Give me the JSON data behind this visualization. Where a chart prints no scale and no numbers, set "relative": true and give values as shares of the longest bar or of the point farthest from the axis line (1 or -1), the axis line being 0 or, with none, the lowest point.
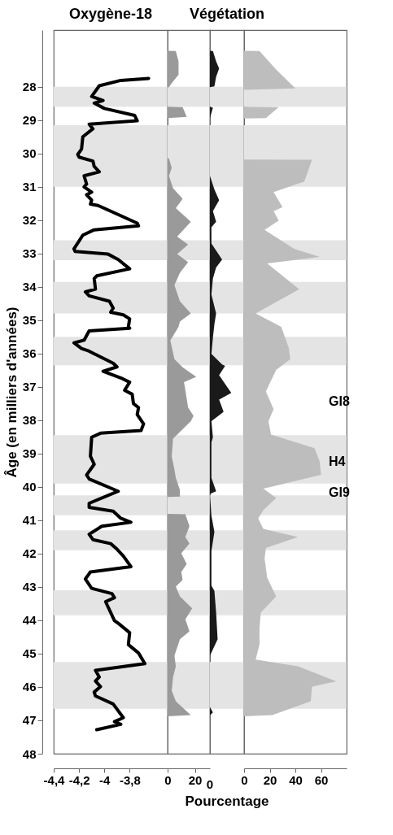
{
  "chart_data": [
    {
      "type": "line",
      "title": "Oxygène-18",
      "ylabel": "Âge (en milliers d'années)",
      "orientation": "horizontal",
      "line_style": "solid",
      "xlim": [
        -4.4,
        -3.5
      ],
      "xticks": [
        {
          "value": -4.4,
          "label": "-4,4"
        },
        {
          "value": -4.2,
          "label": "-4,2"
        },
        -4,
        {
          "value": -3.8,
          "label": "-3,8"
        }
      ],
      "ylim": [
        48,
        26.3
      ],
      "yticks": [
        28,
        29,
        30,
        31,
        32,
        33,
        34,
        35,
        36,
        37,
        38,
        39,
        40,
        41,
        42,
        43,
        44,
        45,
        46,
        47,
        48
      ],
      "bands": [
        {
          "axis": "y",
          "from": 28.0,
          "to": 28.6,
          "color": "#e4e4e4"
        },
        {
          "axis": "y",
          "from": 29.15,
          "to": 31.0,
          "color": "#e4e4e4"
        },
        {
          "axis": "y",
          "from": 32.6,
          "to": 33.2,
          "color": "#e4e4e4"
        },
        {
          "axis": "y",
          "from": 33.85,
          "to": 34.8,
          "color": "#e4e4e4"
        },
        {
          "axis": "y",
          "from": 35.5,
          "to": 36.35,
          "color": "#e4e4e4"
        },
        {
          "axis": "y",
          "from": 38.45,
          "to": 39.9,
          "color": "#e4e4e4"
        },
        {
          "axis": "y",
          "from": 40.25,
          "to": 40.85,
          "color": "#e4e4e4"
        },
        {
          "axis": "y",
          "from": 41.3,
          "to": 41.9,
          "color": "#e4e4e4"
        },
        {
          "axis": "y",
          "from": 43.1,
          "to": 43.85,
          "color": "#e4e4e4"
        },
        {
          "axis": "y",
          "from": 45.25,
          "to": 46.65,
          "color": "#e4e4e4"
        }
      ],
      "series": [
        {
          "color": "#000000",
          "x": [
            27.75,
            27.81,
            27.97,
            28.29,
            28.41,
            28.49,
            28.65,
            28.86,
            29.02,
            29.12,
            29.26,
            29.5,
            29.87,
            30.03,
            30.11,
            30.23,
            30.39,
            30.55,
            30.67,
            30.92,
            31.0,
            31.16,
            31.24,
            31.4,
            31.52,
            31.56,
            32.09,
            32.17,
            32.29,
            32.45,
            32.86,
            32.94,
            33.02,
            33.18,
            33.46,
            33.67,
            33.75,
            34.07,
            34.15,
            34.27,
            34.43,
            34.64,
            34.76,
            34.84,
            34.96,
            35.2,
            35.24,
            35.32,
            35.6,
            35.68,
            35.85,
            35.93,
            36.29,
            36.4,
            36.53,
            36.73,
            36.86,
            37.1,
            37.22,
            37.5,
            37.62,
            37.83,
            38.11,
            38.31,
            38.39,
            38.51,
            39.08,
            39.32,
            39.64,
            39.76,
            40.13,
            40.49,
            40.61,
            40.73,
            40.94,
            41.06,
            41.18,
            41.42,
            41.58,
            41.7,
            41.83,
            42.07,
            42.39,
            42.55,
            42.76,
            43.04,
            43.2,
            43.32,
            43.44,
            44.01,
            44.09,
            44.37,
            44.73,
            44.98,
            45.3,
            45.5,
            45.7,
            45.82,
            45.99,
            46.15,
            46.27,
            46.51,
            46.92,
            47.04,
            47.12,
            47.28
          ],
          "values": [
            -3.65,
            -3.87,
            -4.04,
            -4.1,
            -4.01,
            -4.08,
            -4.0,
            -3.76,
            -3.74,
            -4.12,
            -4.09,
            -4.17,
            -4.18,
            -4.21,
            -4.2,
            -4.09,
            -4.08,
            -4.04,
            -4.16,
            -4.14,
            -4.16,
            -4.1,
            -4.14,
            -4.1,
            -4.11,
            -4.05,
            -3.74,
            -3.73,
            -4.08,
            -4.17,
            -4.24,
            -4.23,
            -3.97,
            -3.89,
            -3.8,
            -4.06,
            -4.08,
            -4.07,
            -4.15,
            -4.12,
            -3.96,
            -3.93,
            -3.95,
            -3.85,
            -3.8,
            -3.81,
            -3.8,
            -4.12,
            -4.16,
            -4.24,
            -4.18,
            -4.12,
            -3.93,
            -3.9,
            -4.01,
            -3.87,
            -3.8,
            -3.84,
            -3.78,
            -3.77,
            -3.73,
            -3.74,
            -3.69,
            -3.71,
            -4.03,
            -4.1,
            -4.11,
            -4.08,
            -4.14,
            -4.12,
            -3.89,
            -4.12,
            -4.12,
            -3.93,
            -3.87,
            -3.79,
            -4.02,
            -4.12,
            -4.09,
            -3.95,
            -3.91,
            -3.85,
            -3.79,
            -4.11,
            -4.15,
            -4.1,
            -3.94,
            -3.92,
            -3.99,
            -3.92,
            -3.89,
            -3.8,
            -3.81,
            -3.73,
            -3.68,
            -4.07,
            -4.04,
            -4.07,
            -4.03,
            -4.08,
            -4.07,
            -3.93,
            -3.85,
            -3.92,
            -3.87,
            -4.06
          ]
        }
      ]
    },
    {
      "type": "area",
      "orientation": "horizontal",
      "tick_labels": "x",
      "xlim": [
        0,
        31
      ],
      "xticks": [
        0,
        20
      ],
      "ylim": [
        48,
        26.3
      ],
      "bands": [
        {
          "axis": "y",
          "from": 28.0,
          "to": 28.6,
          "color": "#e4e4e4"
        },
        {
          "axis": "y",
          "from": 29.15,
          "to": 31.0,
          "color": "#e4e4e4"
        },
        {
          "axis": "y",
          "from": 32.6,
          "to": 33.2,
          "color": "#e4e4e4"
        },
        {
          "axis": "y",
          "from": 33.85,
          "to": 34.8,
          "color": "#e4e4e4"
        },
        {
          "axis": "y",
          "from": 35.5,
          "to": 36.35,
          "color": "#e4e4e4"
        },
        {
          "axis": "y",
          "from": 38.45,
          "to": 39.9,
          "color": "#e4e4e4"
        },
        {
          "axis": "y",
          "from": 40.25,
          "to": 40.85,
          "color": "#e4e4e4"
        },
        {
          "axis": "y",
          "from": 41.3,
          "to": 41.9,
          "color": "#e4e4e4"
        },
        {
          "axis": "y",
          "from": 43.1,
          "to": 43.85,
          "color": "#e4e4e4"
        },
        {
          "axis": "y",
          "from": 45.25,
          "to": 46.65,
          "color": "#e4e4e4"
        }
      ],
      "series": [
        {
          "color": "#9a9a9a",
          "x": [
            26.92,
            26.93,
            27.24,
            27.64,
            27.89,
            28.01,
            28.02,
            28.6,
            28.61,
            28.9,
            28.94,
            30.14,
            30.15,
            30.43,
            30.67,
            31.04,
            31.36,
            31.64,
            32.05,
            32.49,
            32.73,
            33.02,
            33.26,
            33.58,
            33.95,
            34.43,
            34.8,
            35.04,
            35.2,
            35.61,
            36.17,
            36.41,
            36.7,
            36.86,
            37.1,
            37.62,
            37.87,
            38.03,
            38.35,
            38.55,
            39.08,
            39.48,
            39.73,
            40.09,
            40.29,
            40.3,
            40.81,
            40.82,
            41.18,
            41.5,
            41.7,
            41.99,
            42.31,
            42.55,
            42.79,
            42.99,
            43.28,
            43.64,
            43.97,
            44.33,
            44.57,
            45.06,
            45.38,
            45.7,
            46.11,
            46.43,
            46.84,
            46.88
          ],
          "values": [
            0,
            6,
            8,
            8,
            3,
            1,
            0,
            0,
            11,
            14,
            0,
            0,
            1,
            3,
            1,
            4,
            11,
            6,
            17,
            7,
            15,
            7,
            15,
            9,
            5,
            9,
            17,
            9,
            8,
            2,
            5,
            11,
            21,
            12,
            13,
            15,
            19,
            17,
            9,
            4,
            3,
            5,
            6,
            9,
            9,
            0,
            0,
            13,
            16,
            13,
            16,
            10,
            14,
            10,
            11,
            6,
            9,
            18,
            13,
            16,
            9,
            5,
            6,
            4,
            3,
            6,
            17,
            0
          ]
        }
      ]
    },
    {
      "type": "area",
      "title": "Végétation",
      "xlabel": "Pourcentage",
      "orientation": "horizontal",
      "tick_labels": "x",
      "relative": true,
      "annotations": [
        "0"
      ],
      "ylim": [
        48,
        26.3
      ],
      "bands": [
        {
          "axis": "y",
          "from": 28.0,
          "to": 28.6,
          "color": "#e4e4e4"
        },
        {
          "axis": "y",
          "from": 29.15,
          "to": 31.0,
          "color": "#e4e4e4"
        },
        {
          "axis": "y",
          "from": 32.6,
          "to": 33.2,
          "color": "#e4e4e4"
        },
        {
          "axis": "y",
          "from": 33.85,
          "to": 34.8,
          "color": "#e4e4e4"
        },
        {
          "axis": "y",
          "from": 35.5,
          "to": 36.35,
          "color": "#e4e4e4"
        },
        {
          "axis": "y",
          "from": 38.45,
          "to": 39.9,
          "color": "#e4e4e4"
        },
        {
          "axis": "y",
          "from": 40.25,
          "to": 40.85,
          "color": "#e4e4e4"
        },
        {
          "axis": "y",
          "from": 41.3,
          "to": 41.9,
          "color": "#e4e4e4"
        },
        {
          "axis": "y",
          "from": 43.1,
          "to": 43.85,
          "color": "#e4e4e4"
        },
        {
          "axis": "y",
          "from": 45.25,
          "to": 46.65,
          "color": "#e4e4e4"
        }
      ],
      "series": [
        {
          "color": "#1a1a1a",
          "x": [
            26.92,
            26.93,
            27.24,
            27.45,
            27.7,
            27.99,
            28.01,
            28.6,
            28.63,
            28.94,
            30.67,
            31.08,
            31.4,
            31.73,
            32.05,
            32.21,
            32.7,
            33.18,
            33.42,
            33.75,
            34.23,
            34.8,
            35.12,
            35.52,
            36.01,
            36.33,
            36.37,
            36.65,
            37.18,
            37.38,
            37.75,
            38.03,
            38.51,
            38.67,
            39.73,
            40.13,
            40.21,
            40.86,
            41.35,
            41.92,
            42.96,
            43.12,
            43.77,
            44.57,
            45.06,
            46.6,
            46.76,
            46.85
          ],
          "values": [
            0,
            0.14,
            0.29,
            0.43,
            0.29,
            0.21,
            0,
            0,
            0.14,
            0,
            0,
            0.21,
            0.43,
            0.14,
            0.29,
            0.07,
            0.07,
            0.57,
            0.29,
            0.14,
            0.07,
            0.29,
            0.21,
            0.14,
            0.07,
            0.57,
            0.71,
            0.43,
            1,
            0.43,
            0.64,
            0.07,
            0.14,
            0.07,
            0.07,
            0.29,
            0,
            0.07,
            0.21,
            0.07,
            0.07,
            0.21,
            0.29,
            0.36,
            0,
            0,
            0.14,
            0
          ]
        }
      ]
    },
    {
      "type": "area",
      "orientation": "horizontal",
      "tick_labels": "x",
      "xlim": [
        0,
        80
      ],
      "xticks": [
        0,
        20,
        40,
        60
      ],
      "ylim": [
        48,
        26.3
      ],
      "annotations": [
        "GI8",
        "H4",
        "GI9"
      ],
      "bands": [
        {
          "axis": "y",
          "from": 28.0,
          "to": 28.6,
          "color": "#e4e4e4"
        },
        {
          "axis": "y",
          "from": 29.15,
          "to": 31.0,
          "color": "#e4e4e4"
        },
        {
          "axis": "y",
          "from": 32.6,
          "to": 33.2,
          "color": "#e4e4e4"
        },
        {
          "axis": "y",
          "from": 33.85,
          "to": 34.8,
          "color": "#e4e4e4"
        },
        {
          "axis": "y",
          "from": 35.5,
          "to": 36.35,
          "color": "#e4e4e4"
        },
        {
          "axis": "y",
          "from": 38.45,
          "to": 39.9,
          "color": "#e4e4e4"
        },
        {
          "axis": "y",
          "from": 40.25,
          "to": 40.85,
          "color": "#e4e4e4"
        },
        {
          "axis": "y",
          "from": 41.3,
          "to": 41.9,
          "color": "#e4e4e4"
        },
        {
          "axis": "y",
          "from": 43.1,
          "to": 43.85,
          "color": "#e4e4e4"
        },
        {
          "axis": "y",
          "from": 45.25,
          "to": 46.65,
          "color": "#e4e4e4"
        }
      ],
      "series": [
        {
          "color": "#bdbdbd",
          "x": [
            26.92,
            26.93,
            27.48,
            28.05,
            28.09,
            28.6,
            28.61,
            28.94,
            28.95,
            30.18,
            30.19,
            30.84,
            31.16,
            31.61,
            31.73,
            32.01,
            32.29,
            32.86,
            33.1,
            33.3,
            34.07,
            34.8,
            35.2,
            35.85,
            36.17,
            36.49,
            37.14,
            37.67,
            38.03,
            38.43,
            38.84,
            39.24,
            39.64,
            40.05,
            40.33,
            40.7,
            40.94,
            41.26,
            41.5,
            41.83,
            42.15,
            42.72,
            43.28,
            43.77,
            44.25,
            44.73,
            45.18,
            45.38,
            45.83,
            45.99,
            46.43,
            46.84,
            46.88
          ],
          "values": [
            0,
            12,
            25,
            40,
            0,
            0,
            27,
            17,
            0,
            0,
            53,
            47,
            23,
            30,
            23,
            27,
            16,
            39,
            59,
            18,
            43,
            9,
            29,
            35,
            36,
            25,
            17,
            23,
            19,
            21,
            55,
            59,
            60,
            15,
            25,
            15,
            11,
            15,
            42,
            17,
            16,
            18,
            25,
            13,
            12,
            12,
            9,
            42,
            72,
            53,
            52,
            22,
            0
          ]
        }
      ]
    }
  ]
}
